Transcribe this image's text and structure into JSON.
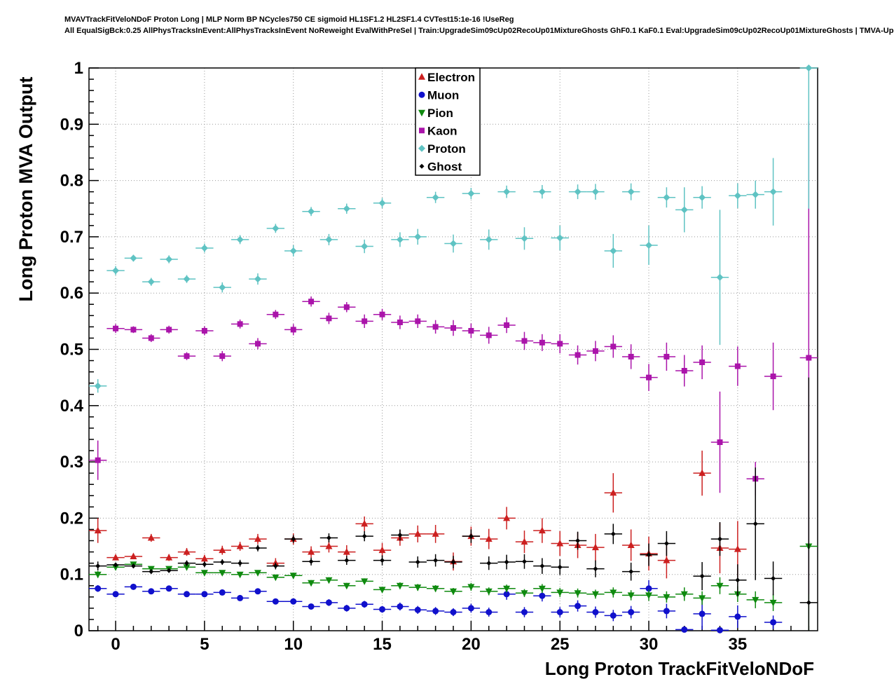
{
  "header": {
    "line1": "MVAVTrackFitVeloNDoF Proton Long | MLP Norm BP NCycles750 CE sigmoid HL1SF1.2 HL2SF1.4 CVTest15:1e-16 !UseReg",
    "line2": "All EqualSigBck:0.25 AllPhysTracksInEvent:AllPhysTracksInEvent NoReweight EvalWithPreSel | Train:UpgradeSim09cUp02RecoUp01MixtureGhosts GhF0.1 KaF0.1 Eval:UpgradeSim09cUp02RecoUp01MixtureGhosts | TMVA-Upgrade-Sim09cUp02RecoUp01"
  },
  "chart_data": {
    "type": "scatter",
    "title": "",
    "xlabel": "Long Proton TrackFitVeloNDoF",
    "ylabel": "Long Proton MVA Output",
    "xlim": [
      -1.5,
      39.5
    ],
    "ylim": [
      0,
      1
    ],
    "x_ticks": [
      0,
      5,
      10,
      15,
      20,
      25,
      30,
      35
    ],
    "y_tick_step": 0.1,
    "grid": true,
    "legend_position": "top-center",
    "series": [
      {
        "name": "Electron",
        "color": "#cc2020",
        "marker": "triangle-up",
        "points": [
          [
            -1,
            0.178,
            0.022
          ],
          [
            0,
            0.13,
            0.005
          ],
          [
            1,
            0.132,
            0.005
          ],
          [
            2,
            0.165,
            0.007
          ],
          [
            3,
            0.13,
            0.006
          ],
          [
            4,
            0.14,
            0.007
          ],
          [
            5,
            0.128,
            0.007
          ],
          [
            6,
            0.143,
            0.008
          ],
          [
            7,
            0.15,
            0.008
          ],
          [
            8,
            0.163,
            0.009
          ],
          [
            9,
            0.12,
            0.009
          ],
          [
            10,
            0.163,
            0.01
          ],
          [
            11,
            0.14,
            0.01
          ],
          [
            12,
            0.15,
            0.011
          ],
          [
            13,
            0.14,
            0.012
          ],
          [
            14,
            0.19,
            0.013
          ],
          [
            15,
            0.143,
            0.013
          ],
          [
            16,
            0.165,
            0.014
          ],
          [
            17,
            0.172,
            0.015
          ],
          [
            18,
            0.172,
            0.016
          ],
          [
            19,
            0.123,
            0.016
          ],
          [
            20,
            0.168,
            0.017
          ],
          [
            21,
            0.163,
            0.018
          ],
          [
            22,
            0.2,
            0.02
          ],
          [
            23,
            0.158,
            0.02
          ],
          [
            24,
            0.178,
            0.022
          ],
          [
            25,
            0.155,
            0.022
          ],
          [
            26,
            0.152,
            0.023
          ],
          [
            27,
            0.148,
            0.024
          ],
          [
            28,
            0.245,
            0.035
          ],
          [
            29,
            0.152,
            0.028
          ],
          [
            30,
            0.137,
            0.03
          ],
          [
            31,
            0.125,
            0.032
          ],
          [
            33,
            0.28,
            0.04
          ],
          [
            34,
            0.147,
            0.045
          ],
          [
            35,
            0.145,
            0.05
          ]
        ]
      },
      {
        "name": "Muon",
        "color": "#1010cc",
        "marker": "circle",
        "points": [
          [
            -1,
            0.075,
            0.006
          ],
          [
            0,
            0.065,
            0.003
          ],
          [
            1,
            0.078,
            0.003
          ],
          [
            2,
            0.07,
            0.004
          ],
          [
            3,
            0.075,
            0.004
          ],
          [
            4,
            0.065,
            0.004
          ],
          [
            5,
            0.065,
            0.004
          ],
          [
            6,
            0.068,
            0.005
          ],
          [
            7,
            0.058,
            0.005
          ],
          [
            8,
            0.07,
            0.005
          ],
          [
            9,
            0.052,
            0.005
          ],
          [
            10,
            0.052,
            0.005
          ],
          [
            11,
            0.043,
            0.005
          ],
          [
            12,
            0.05,
            0.006
          ],
          [
            13,
            0.04,
            0.006
          ],
          [
            14,
            0.047,
            0.006
          ],
          [
            15,
            0.038,
            0.006
          ],
          [
            16,
            0.043,
            0.007
          ],
          [
            17,
            0.037,
            0.007
          ],
          [
            18,
            0.035,
            0.007
          ],
          [
            19,
            0.033,
            0.007
          ],
          [
            20,
            0.04,
            0.008
          ],
          [
            21,
            0.033,
            0.008
          ],
          [
            22,
            0.065,
            0.01
          ],
          [
            23,
            0.033,
            0.009
          ],
          [
            24,
            0.062,
            0.01
          ],
          [
            25,
            0.033,
            0.009
          ],
          [
            26,
            0.044,
            0.01
          ],
          [
            27,
            0.033,
            0.01
          ],
          [
            28,
            0.027,
            0.01
          ],
          [
            29,
            0.033,
            0.011
          ],
          [
            30,
            0.075,
            0.015
          ],
          [
            31,
            0.035,
            0.013
          ],
          [
            32,
            0.002,
            0.002
          ],
          [
            33,
            0.03,
            0.028
          ],
          [
            34,
            0.001,
            0.001
          ],
          [
            35,
            0.025,
            0.02
          ],
          [
            37,
            0.015,
            0.012
          ]
        ]
      },
      {
        "name": "Pion",
        "color": "#0f8a0f",
        "marker": "triangle-down",
        "points": [
          [
            -1,
            0.1,
            0.006
          ],
          [
            0,
            0.113,
            0.003
          ],
          [
            1,
            0.118,
            0.003
          ],
          [
            2,
            0.11,
            0.003
          ],
          [
            3,
            0.11,
            0.003
          ],
          [
            4,
            0.113,
            0.004
          ],
          [
            5,
            0.103,
            0.004
          ],
          [
            6,
            0.103,
            0.004
          ],
          [
            7,
            0.1,
            0.004
          ],
          [
            8,
            0.103,
            0.004
          ],
          [
            9,
            0.095,
            0.004
          ],
          [
            10,
            0.098,
            0.005
          ],
          [
            11,
            0.085,
            0.005
          ],
          [
            12,
            0.09,
            0.005
          ],
          [
            13,
            0.08,
            0.005
          ],
          [
            14,
            0.088,
            0.005
          ],
          [
            15,
            0.073,
            0.005
          ],
          [
            16,
            0.08,
            0.006
          ],
          [
            17,
            0.077,
            0.006
          ],
          [
            18,
            0.075,
            0.006
          ],
          [
            19,
            0.07,
            0.006
          ],
          [
            20,
            0.078,
            0.007
          ],
          [
            21,
            0.07,
            0.007
          ],
          [
            22,
            0.075,
            0.007
          ],
          [
            23,
            0.067,
            0.007
          ],
          [
            24,
            0.075,
            0.008
          ],
          [
            25,
            0.068,
            0.008
          ],
          [
            26,
            0.067,
            0.008
          ],
          [
            27,
            0.065,
            0.008
          ],
          [
            28,
            0.068,
            0.009
          ],
          [
            29,
            0.063,
            0.009
          ],
          [
            30,
            0.063,
            0.01
          ],
          [
            31,
            0.06,
            0.01
          ],
          [
            32,
            0.065,
            0.012
          ],
          [
            33,
            0.058,
            0.012
          ],
          [
            34,
            0.08,
            0.015
          ],
          [
            35,
            0.065,
            0.014
          ],
          [
            36,
            0.055,
            0.015
          ],
          [
            37,
            0.05,
            0.015
          ],
          [
            39,
            0.15,
            0.15
          ]
        ]
      },
      {
        "name": "Kaon",
        "color": "#aa14aa",
        "marker": "square",
        "points": [
          [
            -1,
            0.303,
            0.035
          ],
          [
            0,
            0.537,
            0.008
          ],
          [
            1,
            0.535,
            0.006
          ],
          [
            2,
            0.52,
            0.007
          ],
          [
            3,
            0.535,
            0.007
          ],
          [
            4,
            0.488,
            0.007
          ],
          [
            5,
            0.533,
            0.008
          ],
          [
            6,
            0.488,
            0.009
          ],
          [
            7,
            0.545,
            0.008
          ],
          [
            8,
            0.51,
            0.01
          ],
          [
            9,
            0.562,
            0.008
          ],
          [
            10,
            0.535,
            0.01
          ],
          [
            11,
            0.585,
            0.009
          ],
          [
            12,
            0.555,
            0.01
          ],
          [
            13,
            0.575,
            0.009
          ],
          [
            14,
            0.55,
            0.012
          ],
          [
            15,
            0.562,
            0.01
          ],
          [
            16,
            0.548,
            0.012
          ],
          [
            17,
            0.55,
            0.012
          ],
          [
            18,
            0.54,
            0.012
          ],
          [
            19,
            0.538,
            0.014
          ],
          [
            20,
            0.533,
            0.013
          ],
          [
            21,
            0.525,
            0.015
          ],
          [
            22,
            0.543,
            0.014
          ],
          [
            23,
            0.515,
            0.016
          ],
          [
            24,
            0.512,
            0.015
          ],
          [
            25,
            0.51,
            0.017
          ],
          [
            26,
            0.49,
            0.017
          ],
          [
            27,
            0.497,
            0.018
          ],
          [
            28,
            0.505,
            0.02
          ],
          [
            29,
            0.487,
            0.022
          ],
          [
            30,
            0.45,
            0.024
          ],
          [
            31,
            0.487,
            0.025
          ],
          [
            32,
            0.462,
            0.028
          ],
          [
            33,
            0.477,
            0.03
          ],
          [
            34,
            0.335,
            0.09
          ],
          [
            35,
            0.47,
            0.035
          ],
          [
            36,
            0.27,
            0.03
          ],
          [
            37,
            0.452,
            0.06
          ],
          [
            39,
            0.485,
            0.42
          ]
        ]
      },
      {
        "name": "Proton",
        "color": "#5fc3c3",
        "marker": "diamond",
        "points": [
          [
            -1,
            0.435,
            0.012
          ],
          [
            0,
            0.64,
            0.008
          ],
          [
            1,
            0.662,
            0.006
          ],
          [
            2,
            0.62,
            0.007
          ],
          [
            3,
            0.66,
            0.007
          ],
          [
            4,
            0.625,
            0.007
          ],
          [
            5,
            0.68,
            0.008
          ],
          [
            6,
            0.61,
            0.009
          ],
          [
            7,
            0.695,
            0.008
          ],
          [
            8,
            0.625,
            0.01
          ],
          [
            9,
            0.715,
            0.008
          ],
          [
            10,
            0.675,
            0.01
          ],
          [
            11,
            0.745,
            0.008
          ],
          [
            12,
            0.695,
            0.01
          ],
          [
            13,
            0.75,
            0.009
          ],
          [
            14,
            0.683,
            0.012
          ],
          [
            15,
            0.76,
            0.009
          ],
          [
            16,
            0.695,
            0.013
          ],
          [
            17,
            0.7,
            0.014
          ],
          [
            18,
            0.77,
            0.01
          ],
          [
            19,
            0.688,
            0.016
          ],
          [
            20,
            0.777,
            0.01
          ],
          [
            21,
            0.695,
            0.018
          ],
          [
            22,
            0.78,
            0.011
          ],
          [
            23,
            0.697,
            0.02
          ],
          [
            24,
            0.78,
            0.012
          ],
          [
            25,
            0.698,
            0.022
          ],
          [
            26,
            0.78,
            0.013
          ],
          [
            27,
            0.78,
            0.014
          ],
          [
            28,
            0.675,
            0.03
          ],
          [
            29,
            0.78,
            0.015
          ],
          [
            30,
            0.685,
            0.035
          ],
          [
            31,
            0.77,
            0.018
          ],
          [
            32,
            0.748,
            0.04
          ],
          [
            33,
            0.77,
            0.02
          ],
          [
            34,
            0.628,
            0.12
          ],
          [
            35,
            0.773,
            0.022
          ],
          [
            36,
            0.775,
            0.025
          ],
          [
            37,
            0.78,
            0.06
          ],
          [
            39,
            1.0,
            0.25
          ]
        ]
      },
      {
        "name": "Ghost",
        "color": "#000000",
        "marker": "small-diamond",
        "points": [
          [
            -1,
            0.115,
            0.008
          ],
          [
            0,
            0.117,
            0.004
          ],
          [
            1,
            0.115,
            0.004
          ],
          [
            2,
            0.105,
            0.004
          ],
          [
            3,
            0.107,
            0.004
          ],
          [
            4,
            0.12,
            0.005
          ],
          [
            5,
            0.118,
            0.005
          ],
          [
            6,
            0.122,
            0.005
          ],
          [
            7,
            0.12,
            0.006
          ],
          [
            8,
            0.147,
            0.006
          ],
          [
            9,
            0.115,
            0.006
          ],
          [
            10,
            0.163,
            0.007
          ],
          [
            11,
            0.123,
            0.007
          ],
          [
            12,
            0.165,
            0.008
          ],
          [
            13,
            0.125,
            0.008
          ],
          [
            14,
            0.168,
            0.009
          ],
          [
            15,
            0.125,
            0.009
          ],
          [
            16,
            0.17,
            0.01
          ],
          [
            17,
            0.122,
            0.01
          ],
          [
            18,
            0.125,
            0.011
          ],
          [
            19,
            0.122,
            0.011
          ],
          [
            20,
            0.168,
            0.012
          ],
          [
            21,
            0.12,
            0.012
          ],
          [
            22,
            0.122,
            0.013
          ],
          [
            23,
            0.123,
            0.013
          ],
          [
            24,
            0.115,
            0.014
          ],
          [
            25,
            0.113,
            0.014
          ],
          [
            26,
            0.16,
            0.016
          ],
          [
            27,
            0.11,
            0.015
          ],
          [
            28,
            0.172,
            0.018
          ],
          [
            29,
            0.105,
            0.016
          ],
          [
            30,
            0.135,
            0.02
          ],
          [
            31,
            0.155,
            0.022
          ],
          [
            33,
            0.097,
            0.025
          ],
          [
            34,
            0.163,
            0.03
          ],
          [
            35,
            0.09,
            0.028
          ],
          [
            36,
            0.19,
            0.1
          ],
          [
            37,
            0.093,
            0.03
          ],
          [
            39,
            0.05,
            0.4
          ]
        ]
      }
    ]
  }
}
